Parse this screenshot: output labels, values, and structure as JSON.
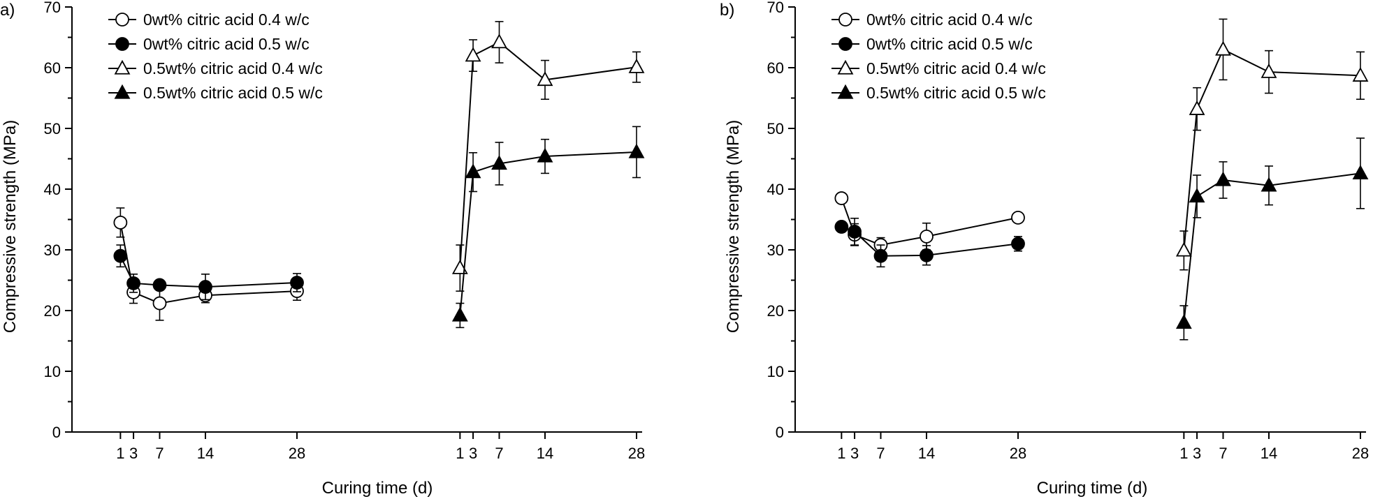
{
  "chart_data": [
    {
      "type": "line",
      "panel_label": "a)",
      "xlabel": "Curing time (d)",
      "ylabel": "Compressive strength (MPa)",
      "ylim": [
        0,
        70
      ],
      "yticks": [
        0,
        10,
        20,
        30,
        40,
        50,
        60,
        70
      ],
      "x_groups": [
        {
          "tick_labels": [
            "1",
            "3",
            "7",
            "14",
            "28"
          ]
        },
        {
          "tick_labels": [
            "1",
            "3",
            "7",
            "14",
            "28"
          ]
        }
      ],
      "legend_position": "top-left",
      "series": [
        {
          "name": "0wt% citric acid 0.4 w/c",
          "marker": "circle-open",
          "group": 0,
          "x": [
            1,
            3,
            7,
            14,
            28
          ],
          "y": [
            34.5,
            23,
            21.2,
            22.5,
            23.2
          ],
          "err": [
            2.4,
            1.8,
            2.8,
            1.2,
            1.5
          ]
        },
        {
          "name": "0wt% citric acid 0.5 w/c",
          "marker": "circle-filled",
          "group": 0,
          "x": [
            1,
            3,
            7,
            14,
            28
          ],
          "y": [
            29,
            24.5,
            24.2,
            23.9,
            24.6
          ],
          "err": [
            1.8,
            1.5,
            0.8,
            2.1,
            1.5
          ]
        },
        {
          "name": "0.5wt% citric acid 0.4 w/c",
          "marker": "triangle-open",
          "group": 1,
          "x": [
            1,
            3,
            7,
            14,
            28
          ],
          "y": [
            27,
            62,
            64.2,
            58,
            60.1
          ],
          "err": [
            3.8,
            2.6,
            3.4,
            3.2,
            2.5
          ]
        },
        {
          "name": "0.5wt% citric acid 0.5 w/c",
          "marker": "triangle-filled",
          "group": 1,
          "x": [
            1,
            3,
            7,
            14,
            28
          ],
          "y": [
            19.2,
            42.8,
            44.2,
            45.4,
            46.1
          ],
          "err": [
            2.0,
            3.2,
            3.5,
            2.8,
            4.2
          ]
        }
      ]
    },
    {
      "type": "line",
      "panel_label": "b)",
      "xlabel": "Curing time (d)",
      "ylabel": "Compressive strength (MPa)",
      "ylim": [
        0,
        70
      ],
      "yticks": [
        0,
        10,
        20,
        30,
        40,
        50,
        60,
        70
      ],
      "x_groups": [
        {
          "tick_labels": [
            "1",
            "3",
            "7",
            "14",
            "28"
          ]
        },
        {
          "tick_labels": [
            "1",
            "3",
            "7",
            "14",
            "28"
          ]
        }
      ],
      "legend_position": "top-left",
      "series": [
        {
          "name": "0wt% citric acid 0.4 w/c",
          "marker": "circle-open",
          "group": 0,
          "x": [
            1,
            3,
            7,
            14,
            28
          ],
          "y": [
            38.5,
            32.5,
            30.8,
            32.2,
            35.3
          ],
          "err": [
            0.6,
            1.8,
            1.2,
            2.2,
            0.8
          ]
        },
        {
          "name": "0wt% citric acid 0.5 w/c",
          "marker": "circle-filled",
          "group": 0,
          "x": [
            1,
            3,
            7,
            14,
            28
          ],
          "y": [
            33.8,
            33,
            29,
            29.1,
            31
          ],
          "err": [
            0.5,
            2.2,
            1.8,
            1.6,
            1.2
          ]
        },
        {
          "name": "0.5wt% citric acid 0.4 w/c",
          "marker": "triangle-open",
          "group": 1,
          "x": [
            1,
            3,
            7,
            14,
            28
          ],
          "y": [
            29.9,
            53.2,
            63,
            59.3,
            58.7
          ],
          "err": [
            3.2,
            3.5,
            5,
            3.5,
            3.9
          ]
        },
        {
          "name": "0.5wt% citric acid 0.5 w/c",
          "marker": "triangle-filled",
          "group": 1,
          "x": [
            1,
            3,
            7,
            14,
            28
          ],
          "y": [
            18,
            38.8,
            41.5,
            40.6,
            42.6
          ],
          "err": [
            2.8,
            3.5,
            3,
            3.2,
            5.8
          ]
        }
      ]
    }
  ]
}
